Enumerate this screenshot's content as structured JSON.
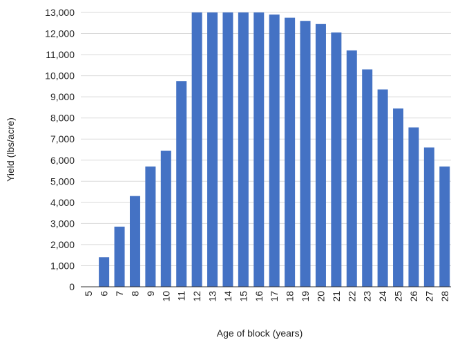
{
  "chart_data": {
    "type": "bar",
    "title": "",
    "xlabel": "Age of  block (years)",
    "ylabel": "Yield (lbs/acre)",
    "ylim": [
      0,
      13000
    ],
    "yticks": [
      0,
      1000,
      2000,
      3000,
      4000,
      5000,
      6000,
      7000,
      8000,
      9000,
      10000,
      11000,
      12000,
      13000
    ],
    "ytick_labels": [
      "0",
      "1,000",
      "2,000",
      "3,000",
      "4,000",
      "5,000",
      "6,000",
      "7,000",
      "8,000",
      "9,000",
      "10,000",
      "11,000",
      "12,000",
      "13,000"
    ],
    "grid": true,
    "legend": "none",
    "bar_color": "#4472c4",
    "categories": [
      "5",
      "6",
      "7",
      "8",
      "9",
      "10",
      "11",
      "12",
      "13",
      "14",
      "15",
      "16",
      "17",
      "18",
      "19",
      "20",
      "21",
      "22",
      "23",
      "24",
      "25",
      "26",
      "27",
      "28"
    ],
    "values": [
      0,
      1400,
      2850,
      4300,
      5700,
      6450,
      9750,
      13000,
      13000,
      13000,
      13000,
      13000,
      12900,
      12750,
      12600,
      12450,
      12050,
      11200,
      10300,
      9350,
      8450,
      7550,
      6600,
      5700
    ]
  }
}
